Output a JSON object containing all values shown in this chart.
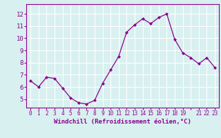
{
  "x": [
    0,
    1,
    2,
    3,
    4,
    5,
    6,
    7,
    8,
    9,
    10,
    11,
    12,
    13,
    14,
    15,
    16,
    17,
    18,
    19,
    20,
    21,
    22,
    23
  ],
  "y": [
    6.5,
    6.0,
    6.8,
    6.7,
    5.9,
    5.1,
    4.7,
    4.6,
    4.9,
    6.3,
    7.4,
    8.5,
    10.5,
    11.1,
    11.6,
    11.2,
    11.7,
    12.0,
    9.9,
    8.8,
    8.4,
    7.9,
    8.4,
    7.6
  ],
  "line_color": "#8B008B",
  "marker": "D",
  "marker_size": 2,
  "bg_color": "#d8f0f0",
  "grid_color": "#ffffff",
  "xlabel": "Windchill (Refroidissement éolien,°C)",
  "xlabel_color": "#8B008B",
  "tick_color": "#8B008B",
  "spine_color": "#8B008B",
  "ylim": [
    4.3,
    12.8
  ],
  "xlim": [
    -0.5,
    23.5
  ],
  "yticks": [
    5,
    6,
    7,
    8,
    9,
    10,
    11,
    12
  ],
  "xticks": [
    0,
    1,
    2,
    3,
    4,
    5,
    6,
    7,
    8,
    9,
    10,
    11,
    12,
    13,
    14,
    15,
    16,
    17,
    18,
    19,
    20,
    21,
    22,
    23
  ],
  "xtick_labels": [
    "0",
    "1",
    "2",
    "3",
    "4",
    "5",
    "6",
    "7",
    "8",
    "9",
    "10",
    "11",
    "12",
    "13",
    "14",
    "15",
    "16",
    "17",
    "18",
    "19",
    " ",
    "21",
    "22",
    "23"
  ],
  "xlabel_fontsize": 6.5,
  "ytick_fontsize": 6.5,
  "xtick_fontsize": 5.5
}
